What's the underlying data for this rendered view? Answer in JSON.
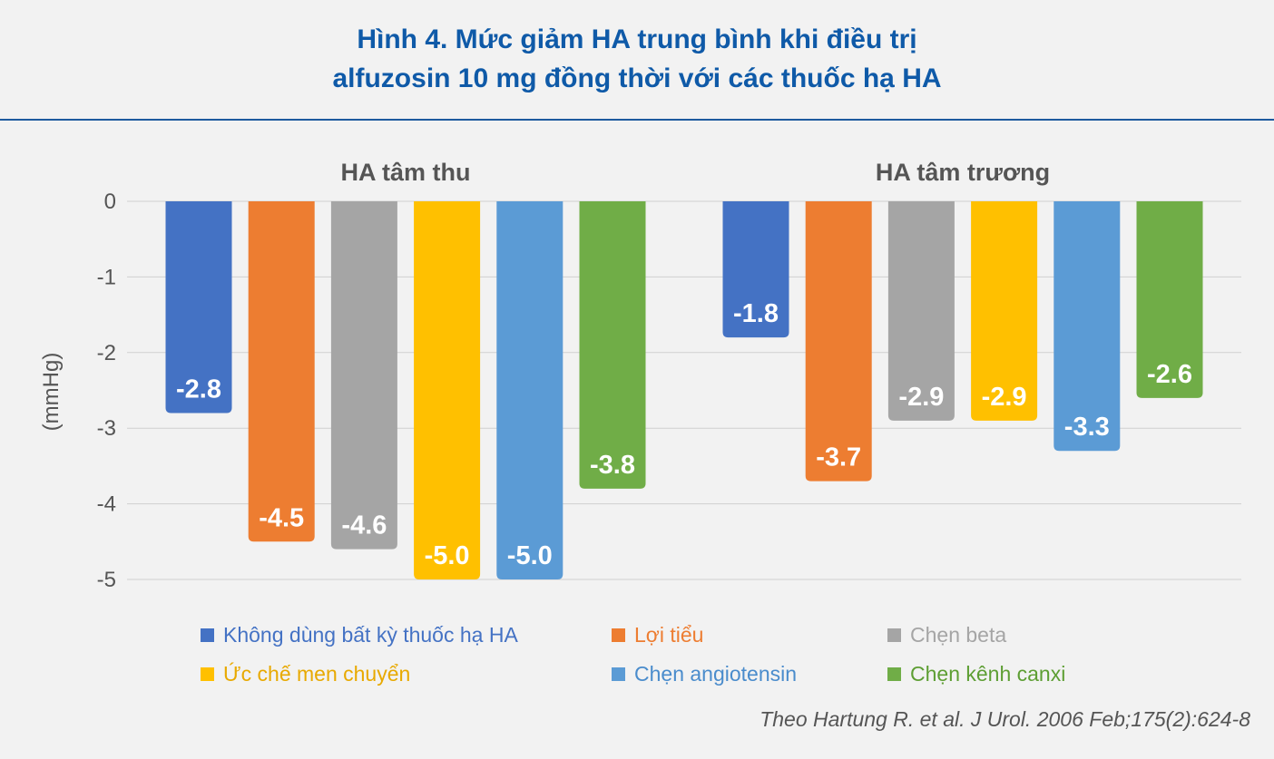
{
  "title": {
    "line1": "Hình 4. Mức giảm HA trung bình khi điều trị",
    "line2": "alfuzosin 10 mg đồng thời với các thuốc hạ HA"
  },
  "chart_data": {
    "type": "bar",
    "ylabel": "(mmHg)",
    "ylim": [
      -5,
      0
    ],
    "yticks": [
      0,
      -1,
      -2,
      -3,
      -4,
      -5
    ],
    "grid": true,
    "legend_position": "bottom",
    "categories": [
      "HA tâm thu",
      "HA tâm trương"
    ],
    "series": [
      {
        "name": "Không dùng bất kỳ thuốc hạ HA",
        "color": "#4472c4",
        "legend_text_color": "#4472c4",
        "values": [
          -2.8,
          -1.8
        ],
        "labels": [
          "-2.8",
          "-1.8"
        ]
      },
      {
        "name": "Lợi tiểu",
        "color": "#ed7d31",
        "legend_text_color": "#ed7d31",
        "values": [
          -4.5,
          -3.7
        ],
        "labels": [
          "-4.5",
          "-3.7"
        ]
      },
      {
        "name": "Chẹn beta",
        "color": "#a5a5a5",
        "legend_text_color": "#a5a5a5",
        "values": [
          -4.6,
          -2.9
        ],
        "labels": [
          "-4.6",
          "-2.9"
        ]
      },
      {
        "name": "Ức chế men chuyển",
        "color": "#ffc000",
        "legend_text_color": "#e8a900",
        "values": [
          -5.0,
          -2.9
        ],
        "labels": [
          "-5.0",
          "-2.9"
        ]
      },
      {
        "name": "Chẹn angiotensin",
        "color": "#5b9bd5",
        "legend_text_color": "#4a8ccc",
        "values": [
          -5.0,
          -3.3
        ],
        "labels": [
          "-5.0",
          "-3.3"
        ]
      },
      {
        "name": "Chẹn kênh canxi",
        "color": "#70ad47",
        "legend_text_color": "#5d9e33",
        "values": [
          -3.8,
          -2.6
        ],
        "labels": [
          "-3.8",
          "-2.6"
        ]
      }
    ]
  },
  "source": "Theo Hartung R. et al. J Urol. 2006 Feb;175(2):624-8"
}
